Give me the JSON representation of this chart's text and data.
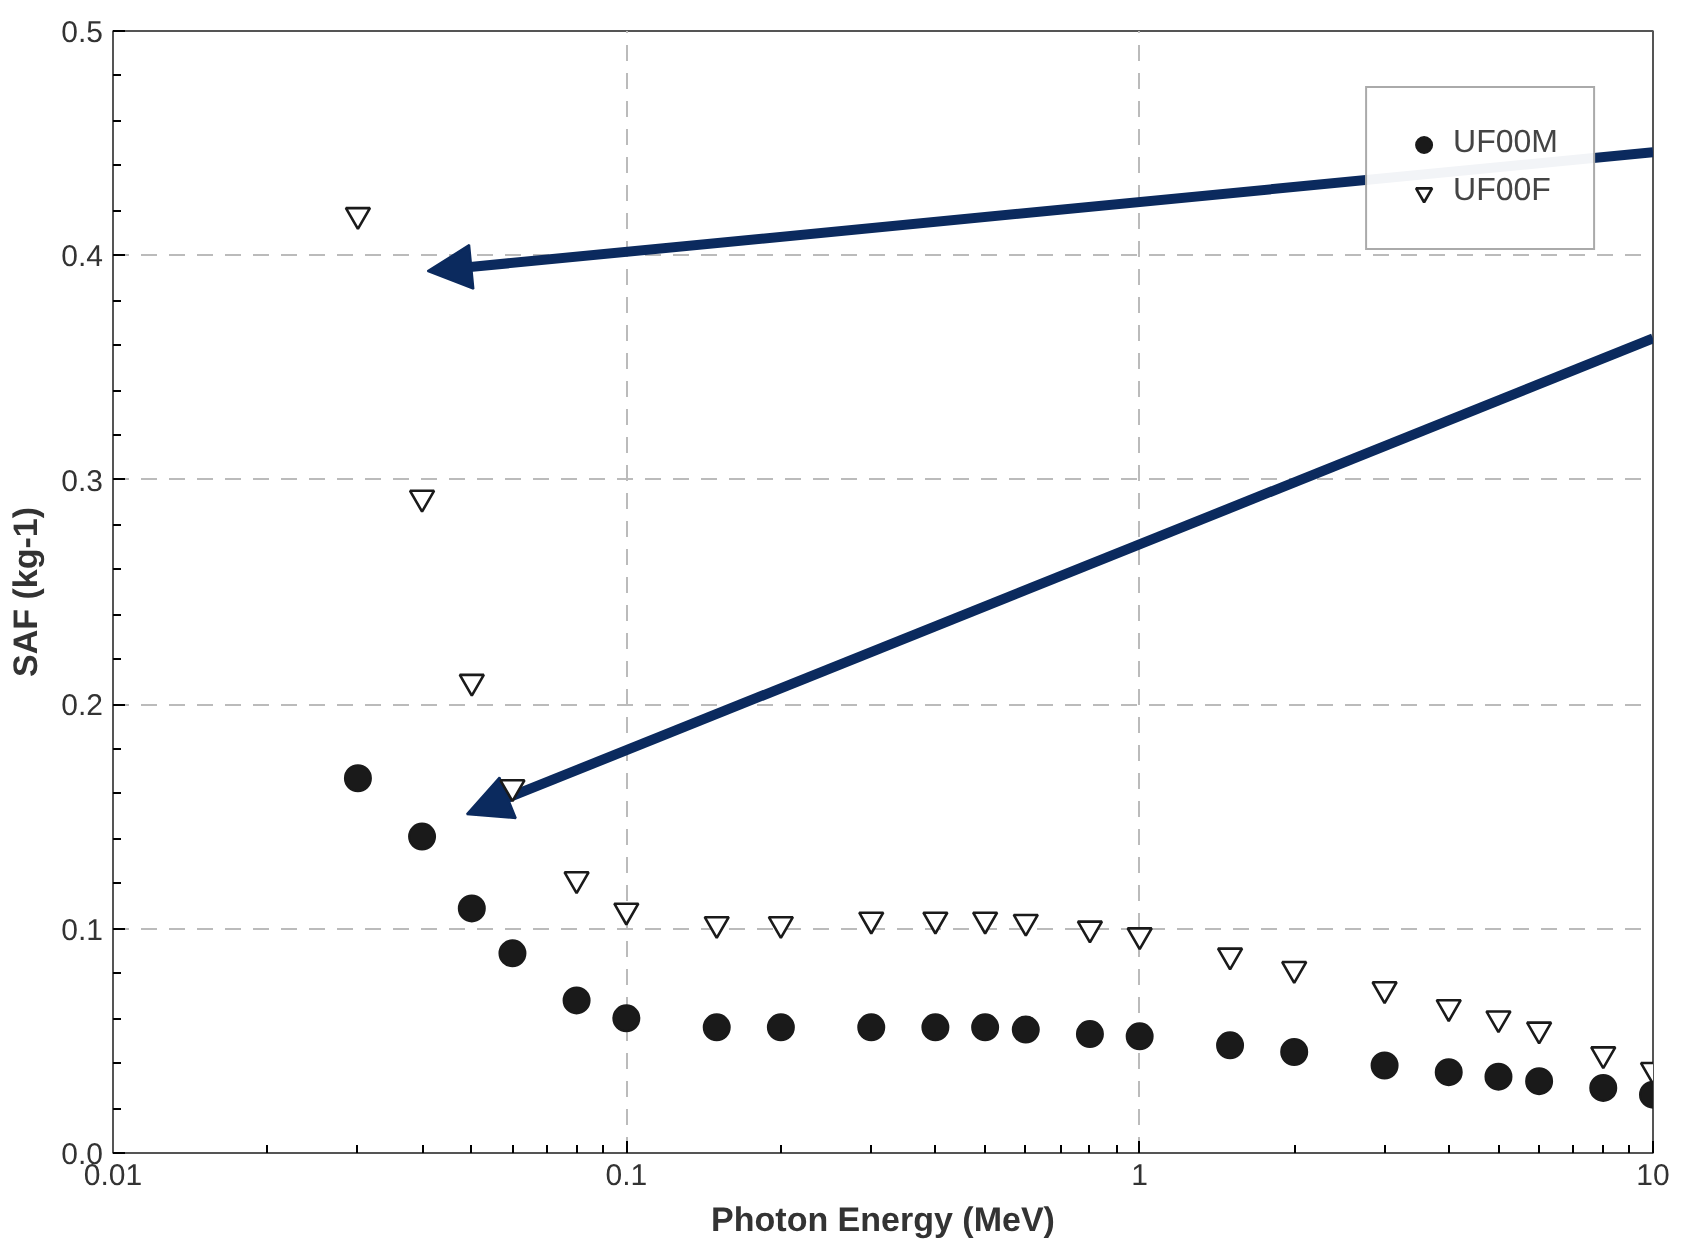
{
  "chart_data": {
    "type": "scatter",
    "xlabel": "Photon Energy (MeV)",
    "ylabel": "SAF (kg-1)",
    "log": "x",
    "x": [
      0.03,
      0.04,
      0.05,
      0.06,
      0.08,
      0.1,
      0.15,
      0.2,
      0.3,
      0.4,
      0.5,
      0.6,
      0.8,
      1,
      1.5,
      2,
      3,
      4,
      5,
      6,
      8,
      10
    ],
    "series": [
      {
        "name": "UF00M",
        "color": "#1a1a1a",
        "marker": "circle",
        "values": [
          0.167,
          0.141,
          0.109,
          0.089,
          0.068,
          0.06,
          0.056,
          0.056,
          0.056,
          0.056,
          0.056,
          0.055,
          0.053,
          0.052,
          0.048,
          0.045,
          0.039,
          0.036,
          0.034,
          0.032,
          0.029,
          0.026
        ]
      },
      {
        "name": "UF00F",
        "color": "#1a1a1a",
        "marker": "triangle",
        "values": [
          0.418,
          0.292,
          0.21,
          0.163,
          0.122,
          0.108,
          0.102,
          0.102,
          0.104,
          0.104,
          0.104,
          0.103,
          0.1,
          0.097,
          0.088,
          0.082,
          0.073,
          0.065,
          0.06,
          0.055,
          0.044,
          0.037
        ]
      }
    ],
    "xlim": [
      0.01,
      10
    ],
    "ylim": [
      0,
      0.5
    ],
    "xticks": [
      0.01,
      0.1,
      1,
      10
    ],
    "yticks": [
      {
        "value": 0,
        "label": "0.0"
      },
      0.1,
      0.2,
      0.3,
      0.4,
      0.5
    ],
    "grid": true,
    "legend": "top right"
  }
}
